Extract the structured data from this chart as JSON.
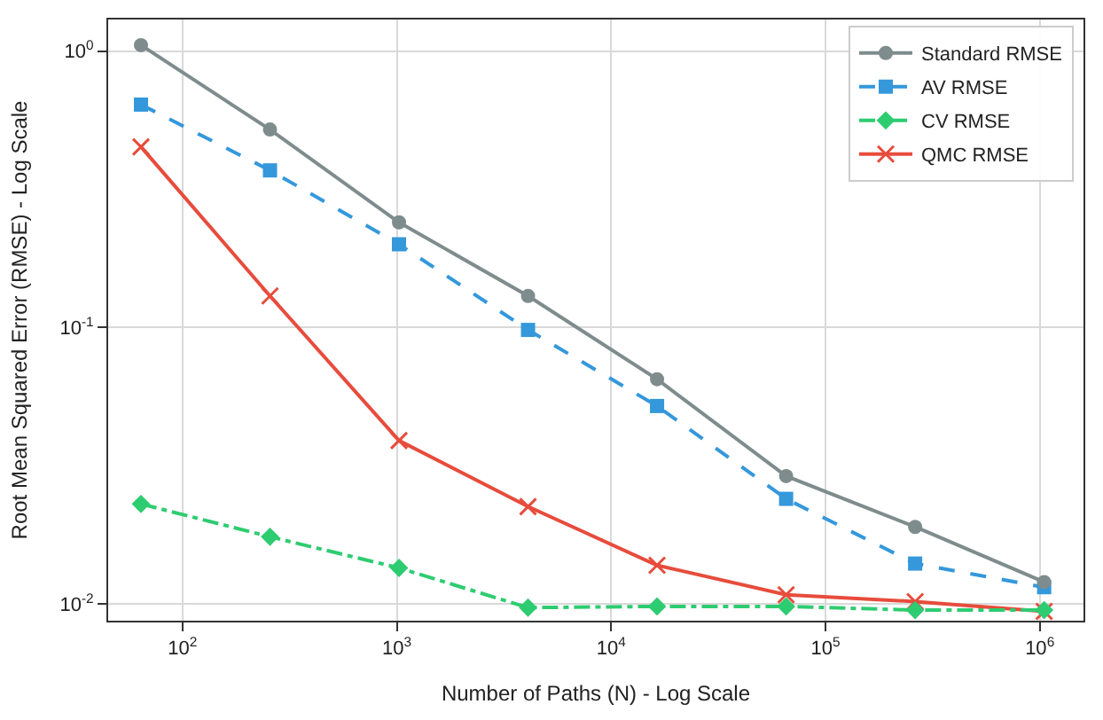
{
  "chart_data": {
    "type": "line",
    "xlabel": "Number of Paths (N) - Log Scale",
    "ylabel": "Root Mean Squared Error (RMSE) - Log Scale",
    "x": [
      64,
      256,
      1024,
      4096,
      16384,
      65536,
      262144,
      1048576
    ],
    "series": [
      {
        "name": "Standard RMSE",
        "color": "#7f8c8d",
        "marker": "circle",
        "line_style": "solid",
        "values": [
          1.05,
          0.52,
          0.24,
          0.13,
          0.065,
          0.029,
          0.019,
          0.012
        ]
      },
      {
        "name": "AV RMSE",
        "color": "#3498db",
        "marker": "square",
        "line_style": "dashed",
        "values": [
          0.64,
          0.37,
          0.2,
          0.098,
          0.052,
          0.024,
          0.014,
          0.0115
        ]
      },
      {
        "name": "CV RMSE",
        "color": "#2ecc71",
        "marker": "diamond",
        "line_style": "dashdot",
        "values": [
          0.023,
          0.0175,
          0.0135,
          0.0097,
          0.0098,
          0.0098,
          0.0095,
          0.0095
        ]
      },
      {
        "name": "QMC RMSE",
        "color": "#e74c3c",
        "marker": "cross",
        "line_style": "solid",
        "values": [
          0.45,
          0.13,
          0.039,
          0.0225,
          0.0138,
          0.0108,
          0.0102,
          0.0094
        ]
      }
    ],
    "log": "xy",
    "xlim": [
      45,
      1600000
    ],
    "ylim": [
      0.0087,
      1.3
    ],
    "xticks": [
      {
        "value": 100,
        "label": "10$^{2}$"
      },
      {
        "value": 1000,
        "label": "10$^{3}$"
      },
      {
        "value": 10000,
        "label": "10$^{4}$"
      },
      {
        "value": 100000,
        "label": "10$^{5}$"
      },
      {
        "value": 1000000,
        "label": "10$^{6}$"
      }
    ],
    "yticks": [
      {
        "value": 0.01,
        "label": "10$^{-2}$"
      },
      {
        "value": 0.1,
        "label": "10$^{-1}$"
      },
      {
        "value": 1,
        "label": "10$^{0}$"
      }
    ],
    "grid": true,
    "legend": "top right"
  }
}
